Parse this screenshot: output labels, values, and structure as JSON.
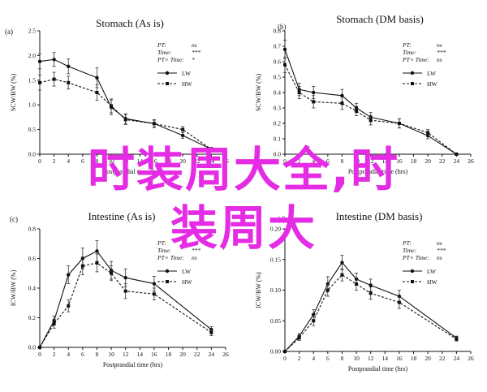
{
  "watermark": {
    "line1": "时装周大全,时",
    "line2": "装周大"
  },
  "chart_data": [
    {
      "panel": "(a)",
      "type": "line",
      "title": "Stomach (As is)",
      "xlabel": "Postprandial time (hrs)",
      "ylabel": "SCW/BW (%)",
      "xlim": [
        0,
        26
      ],
      "ylim": [
        0,
        2.5
      ],
      "xticks": [
        "0",
        "2",
        "4",
        "6",
        "8",
        "10",
        "12",
        "14",
        "16",
        "18",
        "20",
        "22",
        "24",
        "26"
      ],
      "yticks": [
        "0.0",
        "0.5",
        "1.0",
        "1.5",
        "2.0",
        "2.5"
      ],
      "stats": [
        {
          "label": "PT:",
          "value": "ns"
        },
        {
          "label": "Time:",
          "value": "***"
        },
        {
          "label": "PT× Time:",
          "value": "*"
        }
      ],
      "series": [
        {
          "name": "LW",
          "style": "solid",
          "x": [
            0,
            2,
            4,
            8,
            10,
            12,
            16,
            20,
            24
          ],
          "y": [
            1.88,
            1.92,
            1.78,
            1.55,
            0.95,
            0.72,
            0.62,
            0.38,
            0.1
          ],
          "err": [
            0.15,
            0.14,
            0.15,
            0.2,
            0.15,
            0.1,
            0.08,
            0.06,
            0.04
          ]
        },
        {
          "name": "HW",
          "style": "dashed",
          "x": [
            0,
            2,
            4,
            8,
            10,
            12,
            16,
            20,
            24
          ],
          "y": [
            1.45,
            1.52,
            1.45,
            1.25,
            0.98,
            0.7,
            0.62,
            0.5,
            0.1
          ],
          "err": [
            0.15,
            0.14,
            0.13,
            0.16,
            0.14,
            0.1,
            0.07,
            0.06,
            0.03
          ]
        }
      ]
    },
    {
      "panel": "(b)",
      "type": "line",
      "title": "Stomach (DM basis)",
      "xlabel": "Postprandial time (hrs)",
      "ylabel": "SCW/BW (%)",
      "xlim": [
        0,
        26
      ],
      "ylim": [
        0,
        0.8
      ],
      "xticks": [
        "0",
        "2",
        "4",
        "6",
        "8",
        "10",
        "12",
        "14",
        "16",
        "18",
        "20",
        "22",
        "24",
        "26"
      ],
      "yticks": [
        "0.0",
        "0.1",
        "0.2",
        "0.3",
        "0.4",
        "0.5",
        "0.6",
        "0.7",
        "0.8"
      ],
      "stats": [
        {
          "label": "PT:",
          "value": "ns"
        },
        {
          "label": "Time:",
          "value": "***"
        },
        {
          "label": "PT× Time:",
          "value": "ns"
        }
      ],
      "series": [
        {
          "name": "LW",
          "style": "solid",
          "x": [
            0,
            2,
            4,
            8,
            10,
            12,
            16,
            20,
            24
          ],
          "y": [
            0.68,
            0.42,
            0.4,
            0.38,
            0.3,
            0.24,
            0.2,
            0.12,
            0.0
          ],
          "err": [
            0.06,
            0.04,
            0.04,
            0.04,
            0.03,
            0.03,
            0.03,
            0.02,
            0.0
          ]
        },
        {
          "name": "HW",
          "style": "dashed",
          "x": [
            0,
            2,
            4,
            8,
            10,
            12,
            16,
            20,
            24
          ],
          "y": [
            0.58,
            0.4,
            0.34,
            0.33,
            0.28,
            0.22,
            0.2,
            0.14,
            0.0
          ],
          "err": [
            0.05,
            0.04,
            0.04,
            0.04,
            0.03,
            0.03,
            0.03,
            0.02,
            0.0
          ]
        }
      ]
    },
    {
      "panel": "(c)",
      "type": "line",
      "title": "Intestine (As is)",
      "xlabel": "Postprandial time (hrs)",
      "ylabel": "ICW/BW (%)",
      "xlim": [
        0,
        26
      ],
      "ylim": [
        0,
        0.8
      ],
      "xticks": [
        "0",
        "2",
        "4",
        "6",
        "8",
        "10",
        "12",
        "14",
        "16",
        "18",
        "20",
        "22",
        "24",
        "26"
      ],
      "yticks": [
        "0.0",
        "0.2",
        "0.4",
        "0.6",
        "0.8"
      ],
      "stats": [
        {
          "label": "PT:",
          "value": "ns"
        },
        {
          "label": "Time:",
          "value": "***"
        },
        {
          "label": "PT× Time:",
          "value": "ns"
        }
      ],
      "series": [
        {
          "name": "LW",
          "style": "solid",
          "x": [
            0,
            2,
            4,
            6,
            8,
            10,
            12,
            16,
            24
          ],
          "y": [
            0.0,
            0.18,
            0.49,
            0.6,
            0.65,
            0.52,
            0.47,
            0.43,
            0.12
          ],
          "err": [
            0,
            0.03,
            0.06,
            0.07,
            0.07,
            0.06,
            0.06,
            0.05,
            0.02
          ]
        },
        {
          "name": "HW",
          "style": "dashed",
          "x": [
            0,
            2,
            4,
            6,
            8,
            10,
            12,
            16,
            24
          ],
          "y": [
            0.0,
            0.16,
            0.28,
            0.55,
            0.57,
            0.5,
            0.38,
            0.36,
            0.1
          ],
          "err": [
            0,
            0.03,
            0.04,
            0.06,
            0.06,
            0.05,
            0.05,
            0.04,
            0.02
          ]
        }
      ]
    },
    {
      "panel": "(d)",
      "type": "line",
      "title": "Intestine (DM basis)",
      "xlabel": "Postprandial time (hrs)",
      "ylabel": "ICW/BW (%)",
      "xlim": [
        0,
        26
      ],
      "ylim": [
        0,
        0.2
      ],
      "xticks": [
        "0",
        "2",
        "4",
        "6",
        "8",
        "10",
        "12",
        "14",
        "16",
        "18",
        "20",
        "22",
        "24",
        "26"
      ],
      "yticks": [
        "0.00",
        "0.05",
        "0.10",
        "0.15",
        "0.20"
      ],
      "stats": [
        {
          "label": "PT:",
          "value": "ns"
        },
        {
          "label": "Time:",
          "value": "***"
        },
        {
          "label": "PT× Time:",
          "value": "ns"
        }
      ],
      "series": [
        {
          "name": "LW",
          "style": "solid",
          "x": [
            0,
            2,
            4,
            6,
            8,
            10,
            12,
            16,
            24
          ],
          "y": [
            0.0,
            0.025,
            0.06,
            0.11,
            0.145,
            0.118,
            0.108,
            0.09,
            0.022
          ],
          "err": [
            0,
            0.004,
            0.008,
            0.012,
            0.012,
            0.01,
            0.01,
            0.01,
            0.003
          ]
        },
        {
          "name": "HW",
          "style": "dashed",
          "x": [
            0,
            2,
            4,
            6,
            8,
            10,
            12,
            16,
            24
          ],
          "y": [
            0.0,
            0.022,
            0.05,
            0.1,
            0.125,
            0.11,
            0.095,
            0.08,
            0.02
          ],
          "err": [
            0,
            0.004,
            0.008,
            0.01,
            0.01,
            0.01,
            0.01,
            0.01,
            0.003
          ]
        }
      ]
    }
  ]
}
